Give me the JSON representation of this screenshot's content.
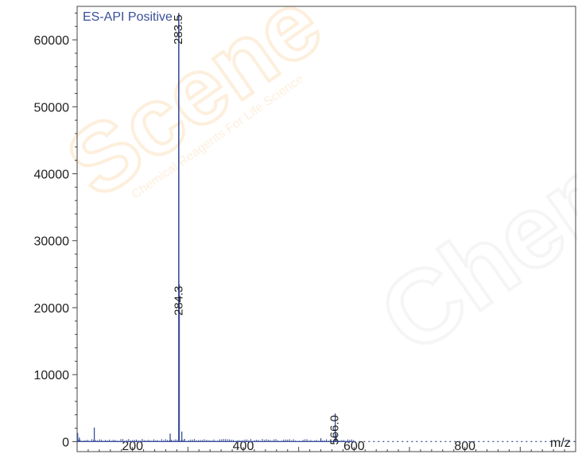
{
  "chart_data": {
    "type": "line",
    "title": "ES-API Positive",
    "xlabel": "m/z",
    "ylabel": "",
    "xlim": [
      100,
      1000
    ],
    "ylim": [
      -1500,
      65000
    ],
    "x_ticks": [
      200,
      400,
      600,
      800
    ],
    "y_ticks": [
      0,
      10000,
      20000,
      30000,
      40000,
      50000,
      60000
    ],
    "grid": false,
    "line_color": "#3a4f9a",
    "peaks": [
      {
        "x": 101,
        "y": 1300
      },
      {
        "x": 104,
        "y": 600
      },
      {
        "x": 131,
        "y": 2100
      },
      {
        "x": 268,
        "y": 1200
      },
      {
        "x": 283.5,
        "y": 64000,
        "label": "283.5"
      },
      {
        "x": 284.3,
        "y": 23500,
        "label": "284.3"
      },
      {
        "x": 289,
        "y": 1500
      },
      {
        "x": 294,
        "y": 400
      },
      {
        "x": 540,
        "y": 500
      },
      {
        "x": 566.0,
        "y": 4200,
        "label": "566.0"
      },
      {
        "x": 568,
        "y": 1100
      }
    ]
  }
}
